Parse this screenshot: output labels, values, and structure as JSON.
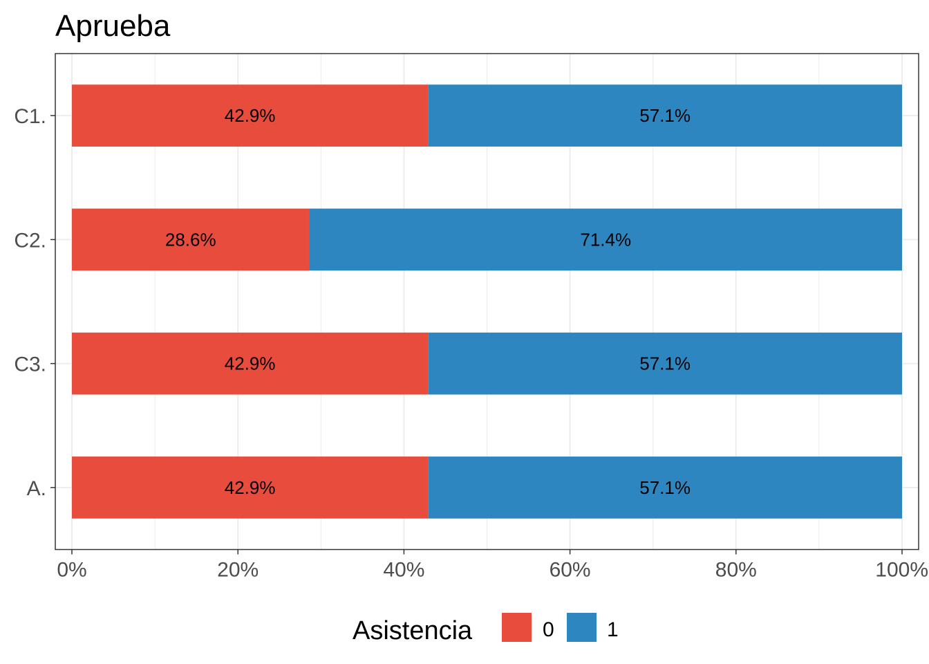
{
  "chart_data": {
    "type": "bar",
    "orientation": "horizontal",
    "stacked": true,
    "title": "Aprueba",
    "xlabel": "",
    "ylabel": "",
    "categories": [
      "C1.",
      "C2.",
      "C3.",
      "A."
    ],
    "series": [
      {
        "name": "0",
        "color": "#E74C3C",
        "values": [
          42.9,
          28.6,
          42.9,
          42.9
        ],
        "labels": [
          "42.9%",
          "28.6%",
          "42.9%",
          "42.9%"
        ]
      },
      {
        "name": "1",
        "color": "#2E86C1",
        "values": [
          57.1,
          71.4,
          57.1,
          57.1
        ],
        "labels": [
          "57.1%",
          "71.4%",
          "57.1%",
          "57.1%"
        ]
      }
    ],
    "xlim": [
      0,
      100
    ],
    "xticks": [
      0,
      20,
      40,
      60,
      80,
      100
    ],
    "xtick_labels": [
      "0%",
      "20%",
      "40%",
      "60%",
      "80%",
      "100%"
    ],
    "grid": true,
    "legend": {
      "title": "Asistencia",
      "placement": "bottom",
      "entries": [
        "0",
        "1"
      ]
    }
  }
}
